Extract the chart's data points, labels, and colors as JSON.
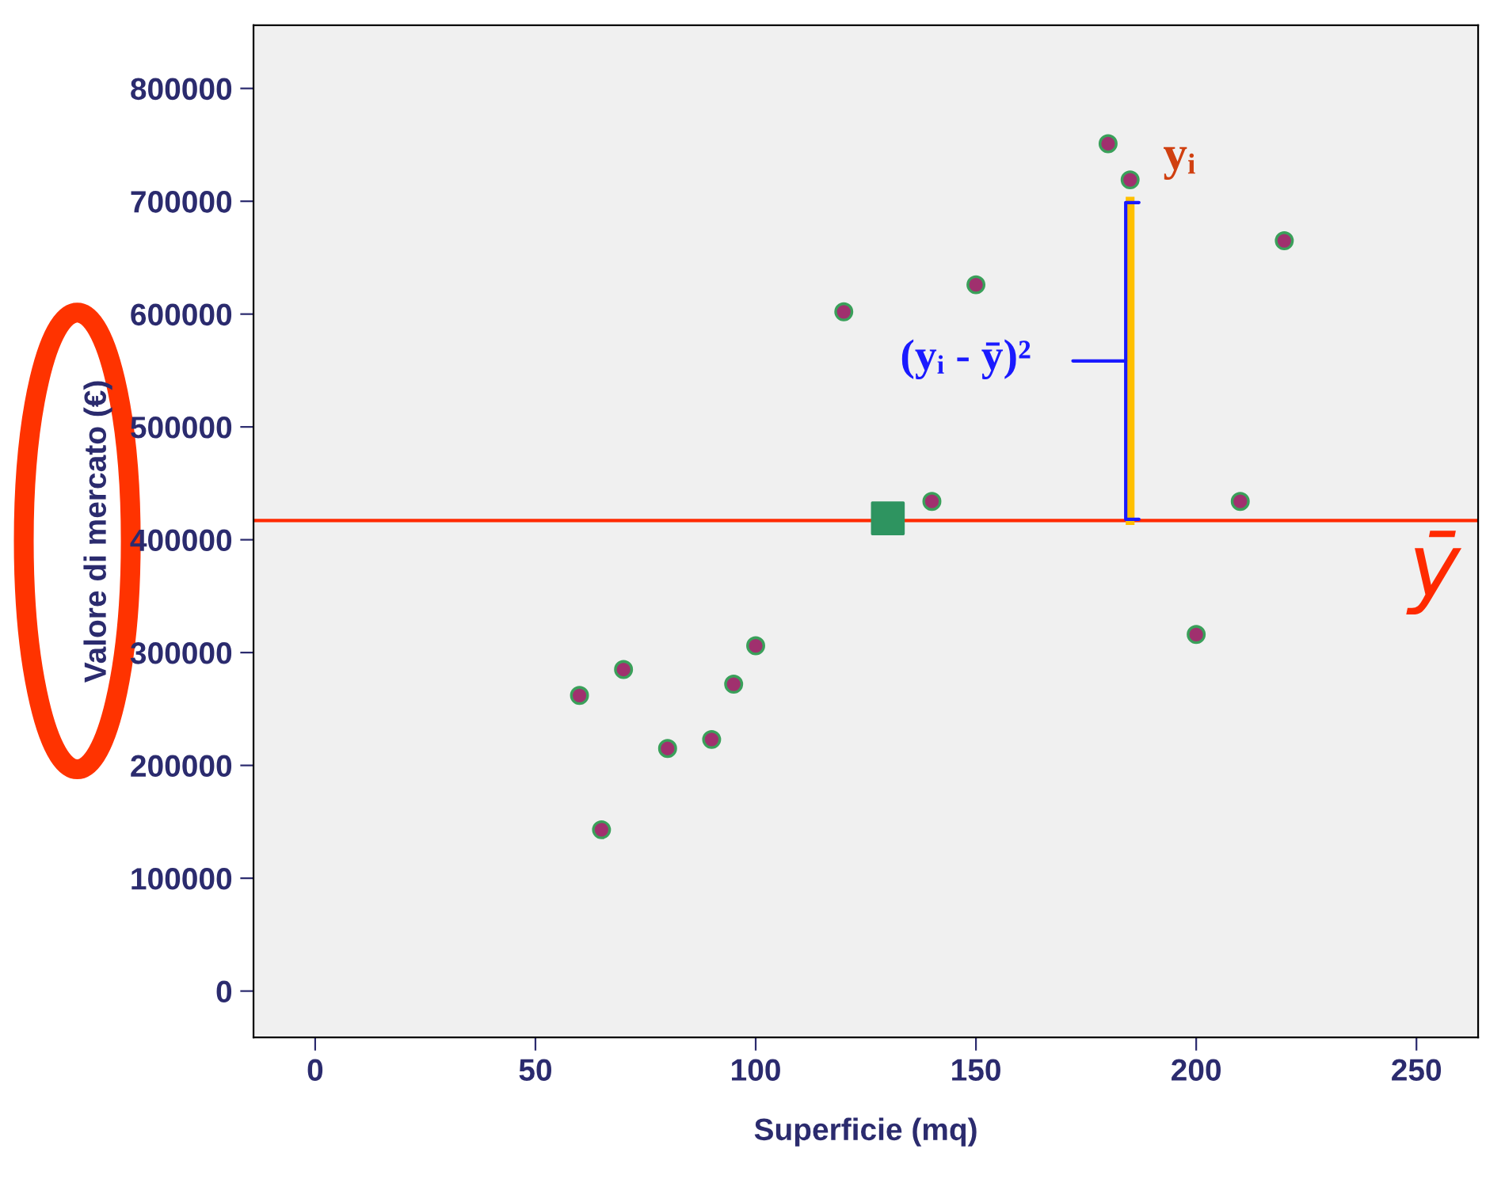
{
  "chart_data": {
    "type": "scatter",
    "xlabel": "Superficie (mq)",
    "ylabel": "Valore di mercato (€)",
    "series": [
      {
        "color": "#a0306e",
        "marker": "circle",
        "x": [
          60,
          65,
          70,
          80,
          90,
          95,
          100,
          120,
          140,
          150,
          180,
          185,
          200,
          210,
          220
        ],
        "values": [
          262000,
          143000,
          285000,
          215000,
          223000,
          272000,
          306000,
          602000,
          434000,
          626000,
          751000,
          719000,
          316000,
          434000,
          665000
        ]
      },
      {
        "color": "#2e9460",
        "marker": "square",
        "x": [
          130
        ],
        "values": [
          419000
        ]
      },
      {
        "type": "line",
        "color": "#ffc000",
        "marker": "none",
        "x": [
          185,
          185
        ],
        "values": [
          417000,
          700000
        ]
      }
    ],
    "ref_lines": [
      {
        "axis": "y",
        "value": 417000,
        "label": "ȳ",
        "color": "#ff2a00"
      }
    ],
    "annotations": [
      {
        "text": "yᵢ",
        "x": 185,
        "y": 719000
      },
      {
        "text": "(yᵢ - ȳ)²",
        "x": 185,
        "y": 560000
      }
    ],
    "xlim": [
      -14,
      264
    ],
    "ylim": [
      -41000,
      856000
    ],
    "xticks": [
      0,
      50,
      100,
      150,
      200,
      250
    ],
    "yticks": [
      0,
      100000,
      200000,
      300000,
      400000,
      500000,
      600000,
      700000,
      800000
    ],
    "grid": false,
    "legend": false
  }
}
